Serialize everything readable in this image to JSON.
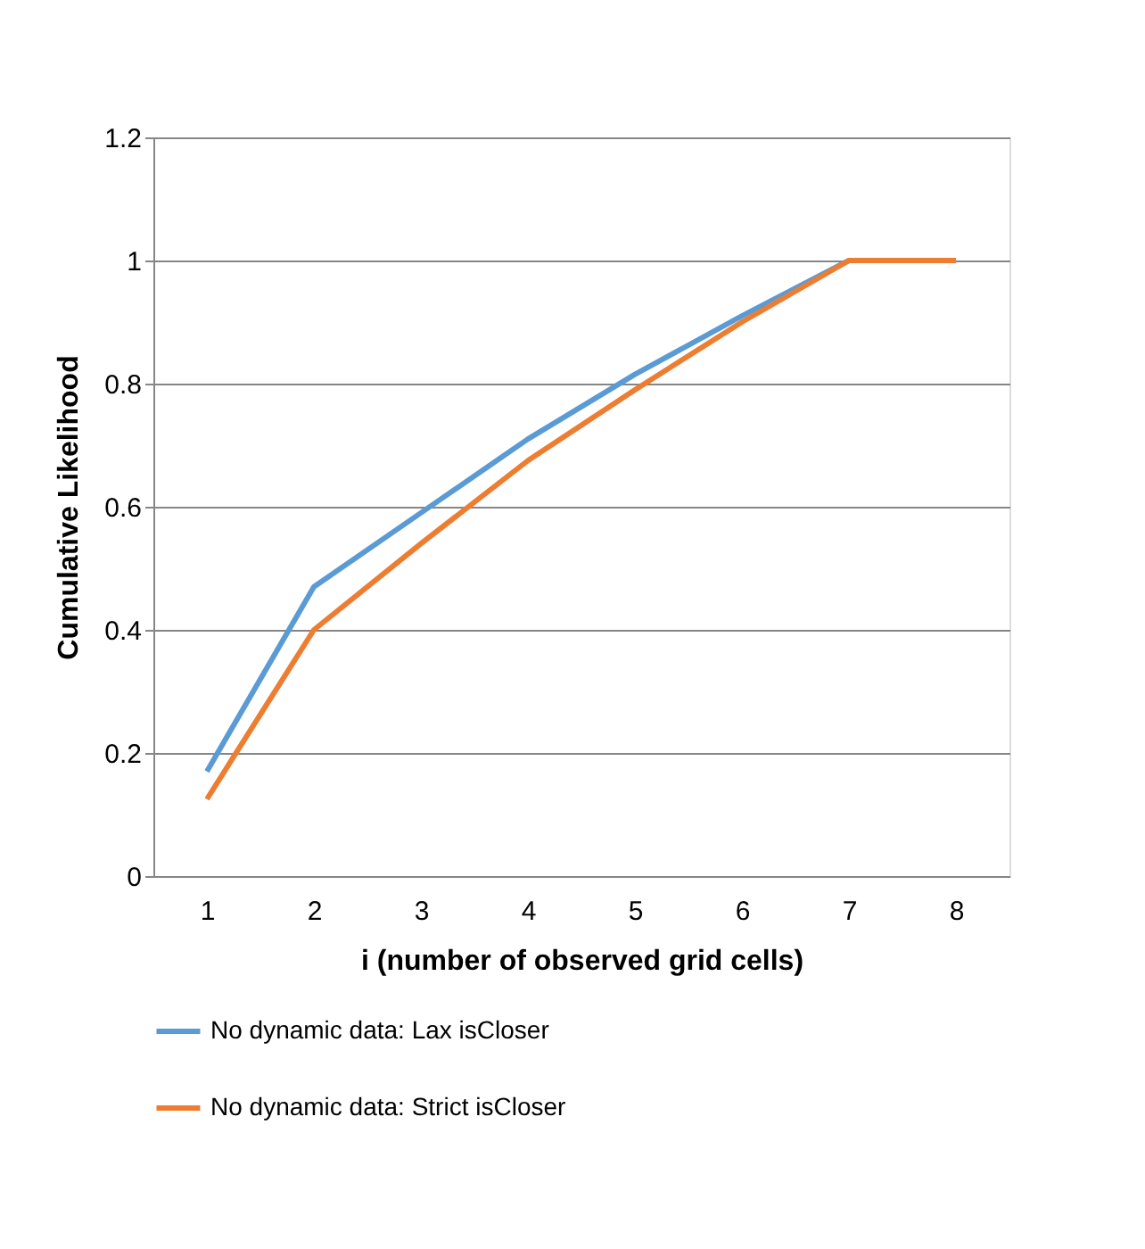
{
  "chart_data": {
    "type": "line",
    "xlabel": "i (number of observed grid cells)",
    "ylabel": "Cumulative Likelihood",
    "categories": [
      "1",
      "2",
      "3",
      "4",
      "5",
      "6",
      "7",
      "8"
    ],
    "series": [
      {
        "name": "No dynamic data: Lax isCloser",
        "color": "#5b9bd5",
        "values": [
          0.17,
          0.47,
          0.59,
          0.71,
          0.815,
          0.91,
          1.0,
          1.0
        ]
      },
      {
        "name": "No dynamic data: Strict isCloser",
        "color": "#ed7d31",
        "values": [
          0.125,
          0.4,
          0.54,
          0.675,
          0.79,
          0.9,
          1.0,
          1.0
        ]
      }
    ],
    "ylim": [
      0,
      1.2
    ],
    "yticks": [
      0,
      0.2,
      0.4,
      0.6,
      0.8,
      1,
      1.2
    ],
    "grid": "y",
    "legend": "bottom",
    "marker": "none",
    "line_style": "solid"
  }
}
